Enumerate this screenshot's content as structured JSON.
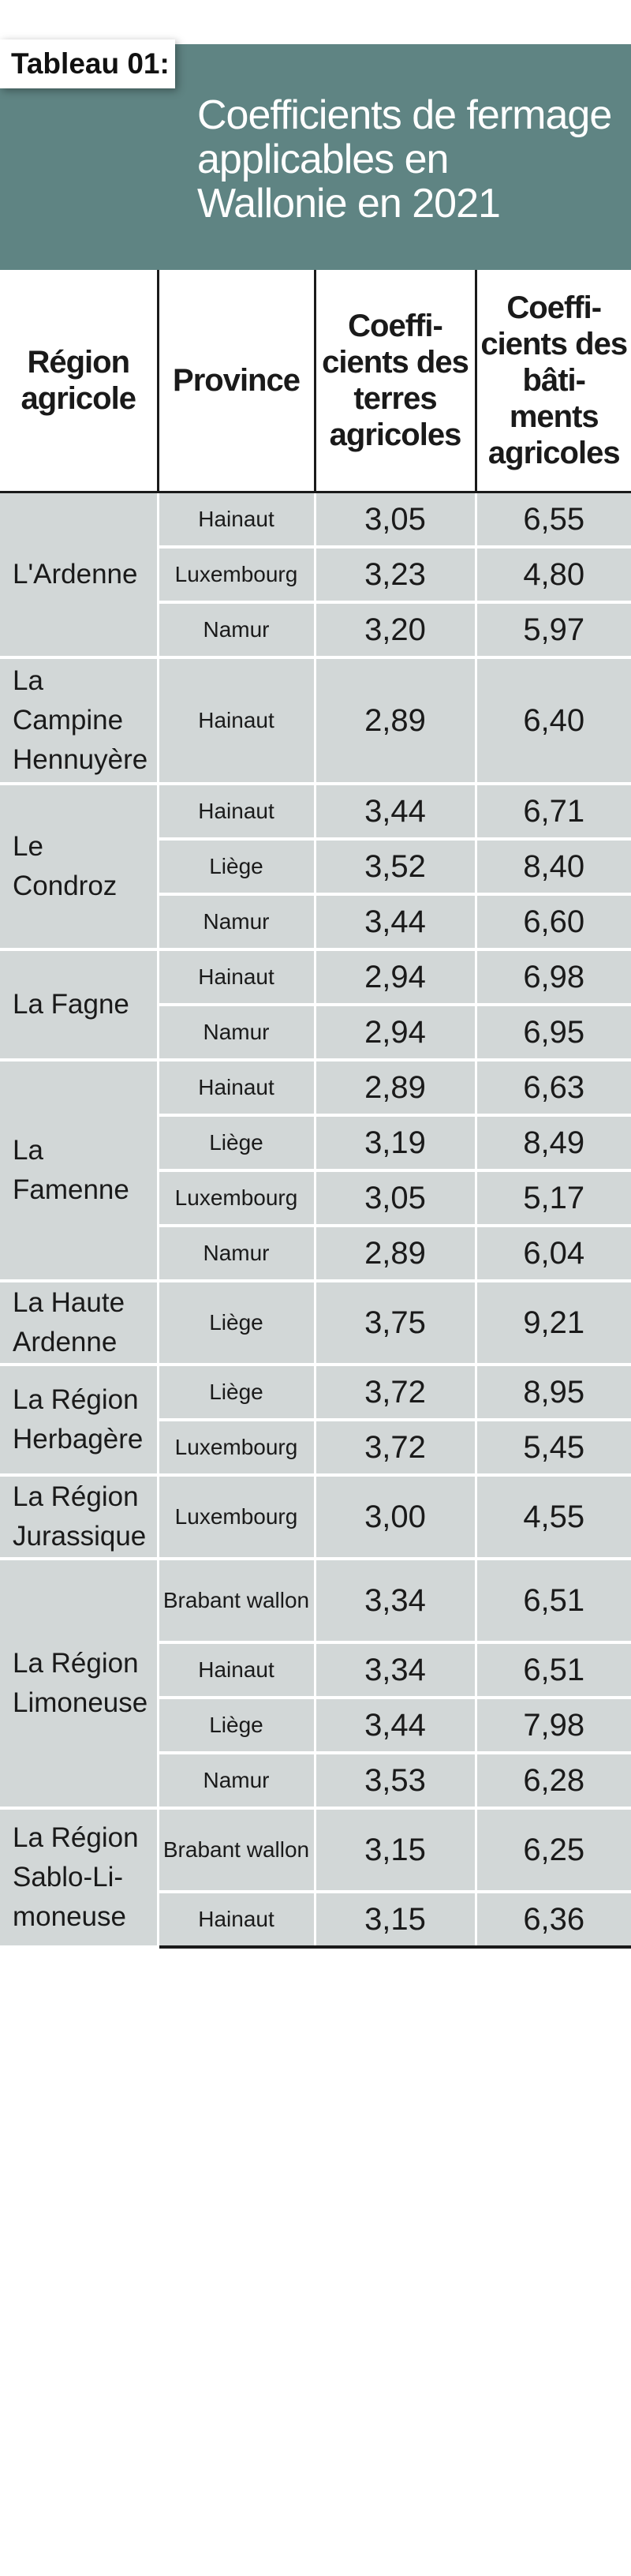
{
  "label": "Tableau 01:",
  "title_lines": [
    "Coefficients de fermage",
    "applicables en",
    "Wallonie en 2021"
  ],
  "headers": {
    "region": "Région agricole",
    "province": "Province",
    "terres": "Coeffi-cients des terres agricoles",
    "batiments": "Coeffi-cients des bâti-ments agricoles"
  },
  "rows": [
    {
      "region": "L'Ardenne",
      "province": "Hainaut",
      "terres": "3,05",
      "batiments": "6,55"
    },
    {
      "region": "",
      "province": "Luxembourg",
      "terres": "3,23",
      "batiments": "4,80"
    },
    {
      "region": "",
      "province": "Namur",
      "terres": "3,20",
      "batiments": "5,97"
    },
    {
      "region": "La Campine Hennuyère",
      "province": "Hainaut",
      "terres": "2,89",
      "batiments": "6,40"
    },
    {
      "region": "Le Condroz",
      "province": "Hainaut",
      "terres": "3,44",
      "batiments": "6,71"
    },
    {
      "region": "",
      "province": "Liège",
      "terres": "3,52",
      "batiments": "8,40"
    },
    {
      "region": "",
      "province": "Namur",
      "terres": "3,44",
      "batiments": "6,60"
    },
    {
      "region": "La Fagne",
      "province": "Hainaut",
      "terres": "2,94",
      "batiments": "6,98"
    },
    {
      "region": "",
      "province": "Namur",
      "terres": "2,94",
      "batiments": "6,95"
    },
    {
      "region": "La Famenne",
      "province": "Hainaut",
      "terres": "2,89",
      "batiments": "6,63"
    },
    {
      "region": "",
      "province": "Liège",
      "terres": "3,19",
      "batiments": "8,49"
    },
    {
      "region": "",
      "province": "Luxembourg",
      "terres": "3,05",
      "batiments": "5,17"
    },
    {
      "region": "",
      "province": "Namur",
      "terres": "2,89",
      "batiments": "6,04"
    },
    {
      "region": "La Haute Ardenne",
      "province": "Liège",
      "terres": "3,75",
      "batiments": "9,21"
    },
    {
      "region": "La Région Herbagère",
      "province": "Liège",
      "terres": "3,72",
      "batiments": "8,95"
    },
    {
      "region": "",
      "province": "Luxembourg",
      "terres": "3,72",
      "batiments": "5,45"
    },
    {
      "region": "La Région Jurassique",
      "province": "Luxembourg",
      "terres": "3,00",
      "batiments": "4,55"
    },
    {
      "region": "La Région Limoneuse",
      "province": "Brabant wallon",
      "terres": "3,34",
      "batiments": "6,51"
    },
    {
      "region": "",
      "province": "Hainaut",
      "terres": "3,34",
      "batiments": "6,51"
    },
    {
      "region": "",
      "province": "Liège",
      "terres": "3,44",
      "batiments": "7,98"
    },
    {
      "region": "",
      "province": "Namur",
      "terres": "3,53",
      "batiments": "6,28"
    },
    {
      "region": "La Région Sablo-Li-moneuse",
      "province": "Brabant wallon",
      "terres": "3,15",
      "batiments": "6,25"
    },
    {
      "region": "",
      "province": "Hainaut",
      "terres": "3,15",
      "batiments": "6,36"
    }
  ]
}
